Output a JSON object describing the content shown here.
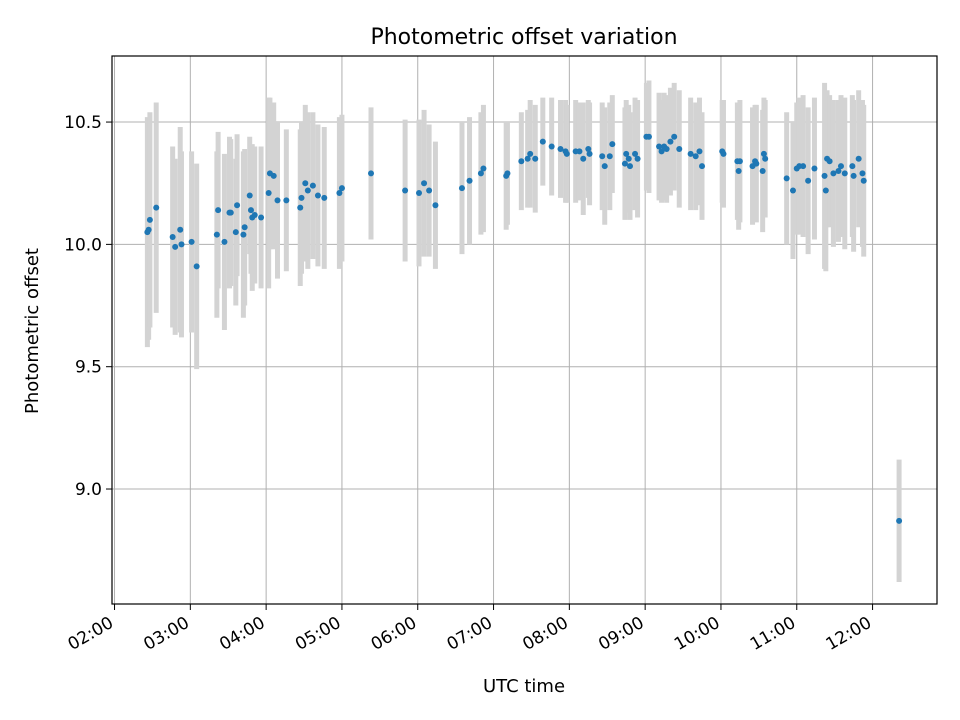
{
  "chart_data": {
    "type": "scatter",
    "title": "Photometric offset variation",
    "xlabel": "UTC time",
    "ylabel": "Photometric offset",
    "x_ticks": [
      "02:00",
      "03:00",
      "04:00",
      "05:00",
      "06:00",
      "07:00",
      "08:00",
      "09:00",
      "10:00",
      "11:00",
      "12:00"
    ],
    "y_ticks": [
      "9.0",
      "9.5",
      "10.0",
      "10.5"
    ],
    "xlim": [
      "01:58",
      "12:51"
    ],
    "ylim": [
      8.53,
      10.77
    ],
    "grid": true,
    "colors": {
      "marker": "#1f77b4",
      "errorbar": "#d3d3d3",
      "grid": "#b0b0b0"
    },
    "series": [
      {
        "points": [
          {
            "x": "02:26",
            "y": 10.05,
            "err": 0.47
          },
          {
            "x": "02:27",
            "y": 10.06,
            "err": 0.45
          },
          {
            "x": "02:28",
            "y": 10.1,
            "err": 0.44
          },
          {
            "x": "02:33",
            "y": 10.15,
            "err": 0.43
          },
          {
            "x": "02:46",
            "y": 10.03,
            "err": 0.37
          },
          {
            "x": "02:48",
            "y": 9.99,
            "err": 0.36
          },
          {
            "x": "02:52",
            "y": 10.06,
            "err": 0.42
          },
          {
            "x": "02:53",
            "y": 10.0,
            "err": 0.38
          },
          {
            "x": "03:01",
            "y": 10.01,
            "err": 0.37
          },
          {
            "x": "03:05",
            "y": 9.91,
            "err": 0.42
          },
          {
            "x": "03:21",
            "y": 10.04,
            "err": 0.34
          },
          {
            "x": "03:22",
            "y": 10.14,
            "err": 0.32
          },
          {
            "x": "03:27",
            "y": 10.01,
            "err": 0.36
          },
          {
            "x": "03:31",
            "y": 10.13,
            "err": 0.31
          },
          {
            "x": "03:32",
            "y": 10.13,
            "err": 0.3
          },
          {
            "x": "03:36",
            "y": 10.05,
            "err": 0.3
          },
          {
            "x": "03:37",
            "y": 10.16,
            "err": 0.29
          },
          {
            "x": "03:42",
            "y": 10.04,
            "err": 0.34
          },
          {
            "x": "03:43",
            "y": 10.07,
            "err": 0.32
          },
          {
            "x": "03:47",
            "y": 10.2,
            "err": 0.24
          },
          {
            "x": "03:48",
            "y": 10.14,
            "err": 0.26
          },
          {
            "x": "03:49",
            "y": 10.11,
            "err": 0.3
          },
          {
            "x": "03:51",
            "y": 10.12,
            "err": 0.28
          },
          {
            "x": "03:56",
            "y": 10.11,
            "err": 0.29
          },
          {
            "x": "04:02",
            "y": 10.21,
            "err": 0.39
          },
          {
            "x": "04:03",
            "y": 10.29,
            "err": 0.31
          },
          {
            "x": "04:06",
            "y": 10.28,
            "err": 0.3
          },
          {
            "x": "04:09",
            "y": 10.18,
            "err": 0.32
          },
          {
            "x": "04:16",
            "y": 10.18,
            "err": 0.29
          },
          {
            "x": "04:27",
            "y": 10.15,
            "err": 0.32
          },
          {
            "x": "04:28",
            "y": 10.19,
            "err": 0.31
          },
          {
            "x": "04:31",
            "y": 10.25,
            "err": 0.32
          },
          {
            "x": "04:33",
            "y": 10.22,
            "err": 0.32
          },
          {
            "x": "04:37",
            "y": 10.24,
            "err": 0.3
          },
          {
            "x": "04:41",
            "y": 10.2,
            "err": 0.29
          },
          {
            "x": "04:46",
            "y": 10.19,
            "err": 0.29
          },
          {
            "x": "04:58",
            "y": 10.21,
            "err": 0.31
          },
          {
            "x": "05:00",
            "y": 10.23,
            "err": 0.3
          },
          {
            "x": "05:23",
            "y": 10.29,
            "err": 0.27
          },
          {
            "x": "05:50",
            "y": 10.22,
            "err": 0.29
          },
          {
            "x": "06:01",
            "y": 10.21,
            "err": 0.3
          },
          {
            "x": "06:05",
            "y": 10.25,
            "err": 0.3
          },
          {
            "x": "06:09",
            "y": 10.22,
            "err": 0.27
          },
          {
            "x": "06:14",
            "y": 10.16,
            "err": 0.26
          },
          {
            "x": "06:35",
            "y": 10.23,
            "err": 0.27
          },
          {
            "x": "06:41",
            "y": 10.26,
            "err": 0.26
          },
          {
            "x": "06:50",
            "y": 10.29,
            "err": 0.25
          },
          {
            "x": "06:52",
            "y": 10.31,
            "err": 0.26
          },
          {
            "x": "07:10",
            "y": 10.28,
            "err": 0.22
          },
          {
            "x": "07:11",
            "y": 10.29,
            "err": 0.21
          },
          {
            "x": "07:22",
            "y": 10.34,
            "err": 0.2
          },
          {
            "x": "07:27",
            "y": 10.35,
            "err": 0.2
          },
          {
            "x": "07:29",
            "y": 10.37,
            "err": 0.22
          },
          {
            "x": "07:33",
            "y": 10.35,
            "err": 0.22
          },
          {
            "x": "07:39",
            "y": 10.42,
            "err": 0.18
          },
          {
            "x": "07:46",
            "y": 10.4,
            "err": 0.2
          },
          {
            "x": "07:53",
            "y": 10.39,
            "err": 0.2
          },
          {
            "x": "07:57",
            "y": 10.38,
            "err": 0.21
          },
          {
            "x": "07:58",
            "y": 10.37,
            "err": 0.2
          },
          {
            "x": "08:05",
            "y": 10.38,
            "err": 0.21
          },
          {
            "x": "08:08",
            "y": 10.38,
            "err": 0.2
          },
          {
            "x": "08:11",
            "y": 10.35,
            "err": 0.23
          },
          {
            "x": "08:15",
            "y": 10.39,
            "err": 0.2
          },
          {
            "x": "08:16",
            "y": 10.37,
            "err": 0.21
          },
          {
            "x": "08:26",
            "y": 10.36,
            "err": 0.22
          },
          {
            "x": "08:28",
            "y": 10.32,
            "err": 0.24
          },
          {
            "x": "08:32",
            "y": 10.36,
            "err": 0.22
          },
          {
            "x": "08:34",
            "y": 10.41,
            "err": 0.2
          },
          {
            "x": "08:44",
            "y": 10.33,
            "err": 0.23
          },
          {
            "x": "08:45",
            "y": 10.37,
            "err": 0.22
          },
          {
            "x": "08:47",
            "y": 10.35,
            "err": 0.22
          },
          {
            "x": "08:48",
            "y": 10.32,
            "err": 0.22
          },
          {
            "x": "08:52",
            "y": 10.37,
            "err": 0.23
          },
          {
            "x": "08:54",
            "y": 10.35,
            "err": 0.24
          },
          {
            "x": "09:01",
            "y": 10.44,
            "err": 0.22
          },
          {
            "x": "09:03",
            "y": 10.44,
            "err": 0.23
          },
          {
            "x": "09:11",
            "y": 10.4,
            "err": 0.22
          },
          {
            "x": "09:13",
            "y": 10.38,
            "err": 0.21
          },
          {
            "x": "09:15",
            "y": 10.4,
            "err": 0.22
          },
          {
            "x": "09:17",
            "y": 10.39,
            "err": 0.22
          },
          {
            "x": "09:20",
            "y": 10.42,
            "err": 0.22
          },
          {
            "x": "09:23",
            "y": 10.44,
            "err": 0.22
          },
          {
            "x": "09:27",
            "y": 10.39,
            "err": 0.24
          },
          {
            "x": "09:36",
            "y": 10.37,
            "err": 0.23
          },
          {
            "x": "09:40",
            "y": 10.36,
            "err": 0.22
          },
          {
            "x": "09:43",
            "y": 10.38,
            "err": 0.22
          },
          {
            "x": "09:45",
            "y": 10.32,
            "err": 0.22
          },
          {
            "x": "10:01",
            "y": 10.38,
            "err": 0.21
          },
          {
            "x": "10:02",
            "y": 10.37,
            "err": 0.22
          },
          {
            "x": "10:13",
            "y": 10.34,
            "err": 0.24
          },
          {
            "x": "10:14",
            "y": 10.3,
            "err": 0.24
          },
          {
            "x": "10:15",
            "y": 10.34,
            "err": 0.25
          },
          {
            "x": "10:25",
            "y": 10.32,
            "err": 0.24
          },
          {
            "x": "10:27",
            "y": 10.34,
            "err": 0.23
          },
          {
            "x": "10:28",
            "y": 10.33,
            "err": 0.24
          },
          {
            "x": "10:33",
            "y": 10.3,
            "err": 0.25
          },
          {
            "x": "10:34",
            "y": 10.37,
            "err": 0.23
          },
          {
            "x": "10:35",
            "y": 10.35,
            "err": 0.24
          },
          {
            "x": "10:52",
            "y": 10.27,
            "err": 0.27
          },
          {
            "x": "10:57",
            "y": 10.22,
            "err": 0.28
          },
          {
            "x": "11:00",
            "y": 10.31,
            "err": 0.27
          },
          {
            "x": "11:02",
            "y": 10.32,
            "err": 0.28
          },
          {
            "x": "11:05",
            "y": 10.32,
            "err": 0.29
          },
          {
            "x": "11:09",
            "y": 10.26,
            "err": 0.3
          },
          {
            "x": "11:14",
            "y": 10.31,
            "err": 0.29
          },
          {
            "x": "11:22",
            "y": 10.28,
            "err": 0.38
          },
          {
            "x": "11:23",
            "y": 10.22,
            "err": 0.33
          },
          {
            "x": "11:24",
            "y": 10.35,
            "err": 0.28
          },
          {
            "x": "11:26",
            "y": 10.34,
            "err": 0.27
          },
          {
            "x": "11:29",
            "y": 10.29,
            "err": 0.3
          },
          {
            "x": "11:33",
            "y": 10.3,
            "err": 0.29
          },
          {
            "x": "11:35",
            "y": 10.32,
            "err": 0.29
          },
          {
            "x": "11:38",
            "y": 10.29,
            "err": 0.31
          },
          {
            "x": "11:44",
            "y": 10.32,
            "err": 0.29
          },
          {
            "x": "11:45",
            "y": 10.28,
            "err": 0.31
          },
          {
            "x": "11:49",
            "y": 10.35,
            "err": 0.28
          },
          {
            "x": "11:52",
            "y": 10.29,
            "err": 0.3
          },
          {
            "x": "11:53",
            "y": 10.26,
            "err": 0.31
          },
          {
            "x": "12:21",
            "y": 8.87,
            "err": 0.25
          }
        ]
      }
    ]
  }
}
